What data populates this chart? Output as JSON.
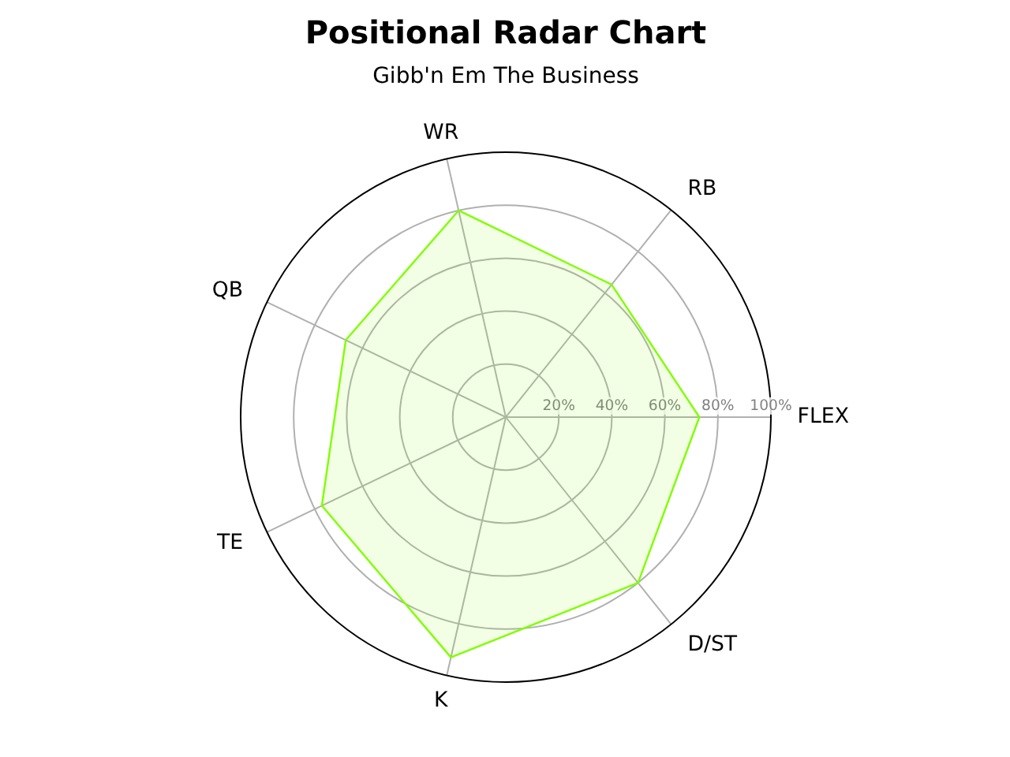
{
  "chart_data": {
    "type": "radar",
    "title": "Positional Radar Chart",
    "subtitle": "Gibb'n Em The Business",
    "categories": [
      "WR",
      "RB",
      "FLEX",
      "D/ST",
      "K",
      "TE",
      "QB"
    ],
    "series": [
      {
        "color": "#7fff00",
        "values": [
          80,
          64,
          73,
          80,
          93,
          77,
          67
        ]
      }
    ],
    "ylim": [
      0,
      100
    ],
    "yticks": [
      {
        "value": 20,
        "label": "20%"
      },
      {
        "value": 40,
        "label": "40%"
      },
      {
        "value": 60,
        "label": "60%"
      },
      {
        "value": 80,
        "label": "80%"
      },
      {
        "value": 100,
        "label": "100%"
      }
    ],
    "grid": true
  }
}
